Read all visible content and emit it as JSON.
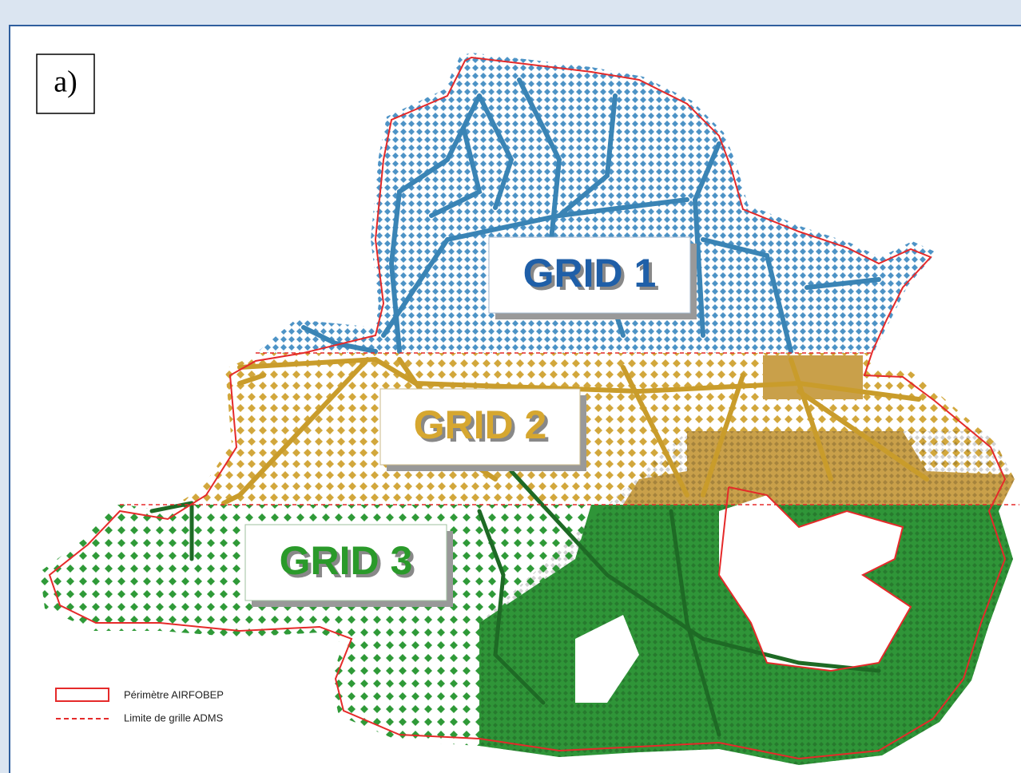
{
  "panel_label": "a)",
  "grids": [
    {
      "label": "GRID 1"
    },
    {
      "label": "GRID 2"
    },
    {
      "label": "GRID 3"
    }
  ],
  "legend": [
    {
      "label": "Périmètre AIRFOBEP"
    },
    {
      "label": "Limite de grille ADMS"
    }
  ]
}
